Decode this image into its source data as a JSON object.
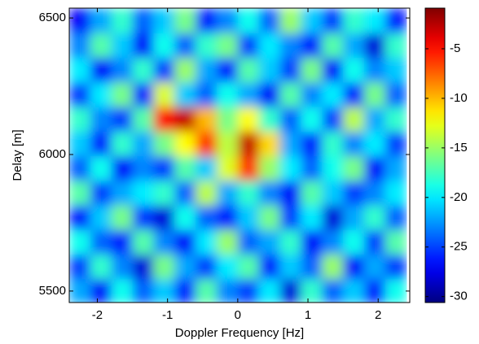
{
  "chart_data": {
    "type": "heatmap",
    "x_label": "Doppler Frequency [Hz]",
    "y_label": "Delay [m]",
    "x": [
      -2.25,
      -1.95,
      -1.65,
      -1.35,
      -1.05,
      -0.75,
      -0.45,
      -0.15,
      0.15,
      0.45,
      0.75,
      1.05,
      1.35,
      1.65,
      1.95,
      2.25
    ],
    "y": [
      5500,
      5590,
      5680,
      5770,
      5860,
      5950,
      6040,
      6130,
      6220,
      6310,
      6400,
      6490
    ],
    "z": [
      [
        -22,
        -27,
        -19,
        -24,
        -21,
        -26,
        -17,
        -23,
        -25,
        -20,
        -28,
        -18,
        -24,
        -21,
        -26,
        -19
      ],
      [
        -25,
        -18,
        -23,
        -28,
        -16,
        -22,
        -25,
        -20,
        -17,
        -26,
        -21,
        -24,
        -15,
        -27,
        -22,
        -25
      ],
      [
        -19,
        -24,
        -26,
        -17,
        -23,
        -27,
        -20,
        -15,
        -24,
        -22,
        -18,
        -27,
        -23,
        -19,
        -25,
        -17
      ],
      [
        -26,
        -21,
        -16,
        -25,
        -28,
        -19,
        -24,
        -26,
        -21,
        -16,
        -25,
        -20,
        -28,
        -22,
        -18,
        -24
      ],
      [
        -17,
        -25,
        -22,
        -20,
        -18,
        -24,
        -14,
        -22,
        -18,
        -23,
        -27,
        -17,
        -21,
        -25,
        -23,
        -20
      ],
      [
        -24,
        -19,
        -27,
        -23,
        -25,
        -17,
        -21,
        -13,
        -6,
        -15,
        -20,
        -24,
        -19,
        -16,
        -27,
        -22
      ],
      [
        -21,
        -26,
        -18,
        -22,
        -16,
        -12,
        -6,
        -14,
        -3,
        -11,
        -22,
        -26,
        -18,
        -23,
        -20,
        -25
      ],
      [
        -18,
        -23,
        -25,
        -17,
        -5,
        -3,
        -10,
        -16,
        -12,
        -18,
        -24,
        -19,
        -25,
        -14,
        -22,
        -18
      ],
      [
        -25,
        -20,
        -16,
        -26,
        -13,
        -21,
        -24,
        -19,
        -22,
        -27,
        -17,
        -23,
        -20,
        -26,
        -16,
        -24
      ],
      [
        -20,
        -27,
        -23,
        -18,
        -25,
        -15,
        -22,
        -26,
        -17,
        -21,
        -25,
        -16,
        -27,
        -19,
        -23,
        -21
      ],
      [
        -23,
        -17,
        -21,
        -27,
        -19,
        -24,
        -18,
        -16,
        -25,
        -20,
        -23,
        -26,
        -17,
        -22,
        -28,
        -18
      ],
      [
        -27,
        -22,
        -18,
        -24,
        -21,
        -16,
        -26,
        -23,
        -19,
        -24,
        -15,
        -21,
        -25,
        -18,
        -20,
        -26
      ]
    ],
    "xlim": [
      -2.4,
      2.45
    ],
    "ylim": [
      5458,
      6536
    ],
    "xticks": [
      -2,
      -1,
      0,
      1,
      2
    ],
    "yticks": [
      5500,
      6000,
      6500
    ],
    "colormap": "jet",
    "clim": [
      -30.6,
      -0.9
    ],
    "cticks": [
      -30,
      -25,
      -20,
      -15,
      -10,
      -5
    ]
  }
}
